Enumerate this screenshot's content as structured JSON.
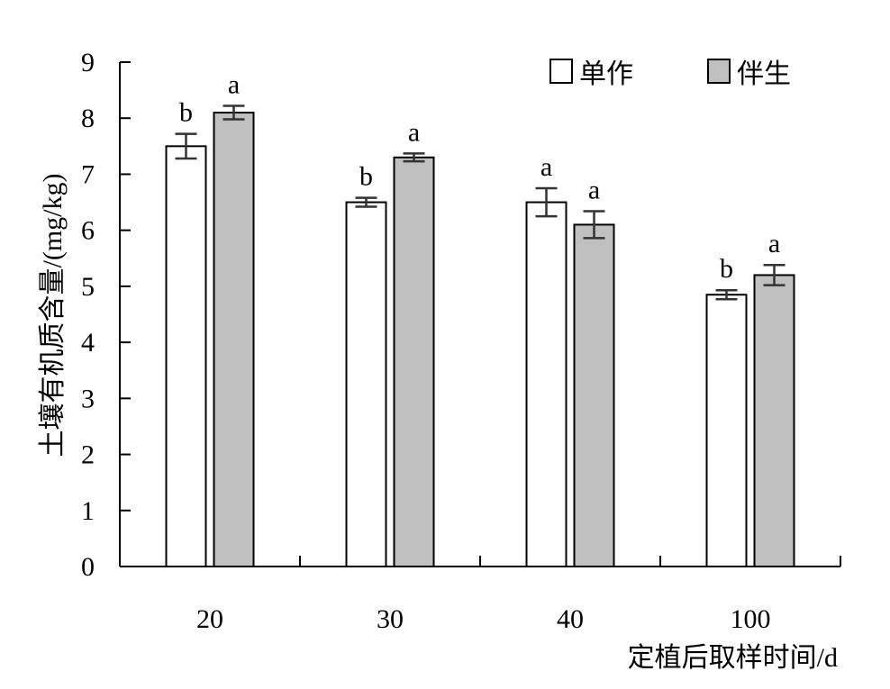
{
  "chart_data": {
    "type": "bar",
    "xlabel": "定植后取样时间/d",
    "ylabel": "土壤有机质含量/(mg/kg)",
    "categories": [
      "20",
      "30",
      "40",
      "100"
    ],
    "ylim": [
      0,
      9
    ],
    "yticks": [
      "0",
      "1",
      "2",
      "3",
      "4",
      "5",
      "6",
      "7",
      "8",
      "9"
    ],
    "legend_position": "top-right",
    "grid": false,
    "series": [
      {
        "name": "单作",
        "color": "#ffffff",
        "values": [
          7.5,
          6.5,
          6.5,
          4.85
        ],
        "errors": [
          0.22,
          0.08,
          0.25,
          0.08
        ],
        "significance": [
          "b",
          "b",
          "a",
          "b"
        ]
      },
      {
        "name": "伴生",
        "color": "#c0c0c0",
        "values": [
          8.1,
          7.3,
          6.1,
          5.2
        ],
        "errors": [
          0.12,
          0.07,
          0.24,
          0.18
        ],
        "significance": [
          "a",
          "a",
          "a",
          "a"
        ]
      }
    ]
  }
}
